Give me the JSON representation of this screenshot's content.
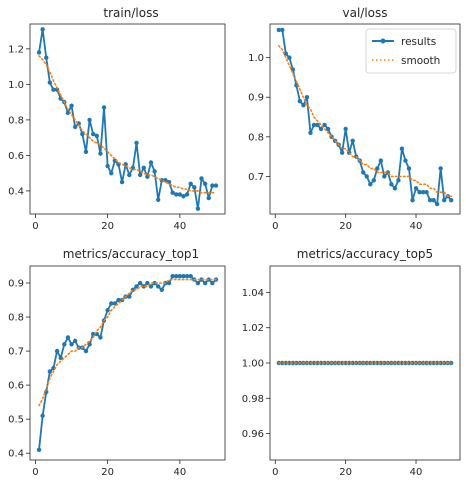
{
  "colors": {
    "results": "#1f77b4",
    "smooth": "#ff7f0e",
    "axis": "#262626",
    "background": "#ffffff"
  },
  "chart_data": [
    {
      "type": "line",
      "title": "train/loss",
      "xlim": [
        -1.5,
        52.5
      ],
      "ylim": [
        0.27,
        1.34
      ],
      "xticks": [
        0,
        20,
        40
      ],
      "yticks": [
        0.4,
        0.6,
        0.8,
        1.0,
        1.2
      ],
      "x": [
        1,
        2,
        3,
        4,
        5,
        6,
        7,
        8,
        9,
        10,
        11,
        12,
        13,
        14,
        15,
        16,
        17,
        18,
        19,
        20,
        21,
        22,
        23,
        24,
        25,
        26,
        27,
        28,
        29,
        30,
        31,
        32,
        33,
        34,
        35,
        36,
        37,
        38,
        39,
        40,
        41,
        42,
        43,
        44,
        45,
        46,
        47,
        48,
        49,
        50
      ],
      "series": [
        {
          "name": "results",
          "style": "line-dot",
          "values": [
            1.18,
            1.31,
            1.15,
            1.01,
            0.97,
            0.97,
            0.92,
            0.9,
            0.84,
            0.88,
            0.76,
            0.78,
            0.72,
            0.62,
            0.8,
            0.72,
            0.71,
            0.61,
            0.87,
            0.54,
            0.5,
            0.57,
            0.55,
            0.45,
            0.55,
            0.49,
            0.53,
            0.67,
            0.49,
            0.53,
            0.48,
            0.56,
            0.51,
            0.35,
            0.46,
            0.46,
            0.45,
            0.39,
            0.38,
            0.38,
            0.37,
            0.38,
            0.44,
            0.42,
            0.3,
            0.47,
            0.44,
            0.36,
            0.43,
            0.43
          ]
        },
        {
          "name": "smooth",
          "style": "dotted",
          "values": [
            1.16,
            1.14,
            1.11,
            1.07,
            1.02,
            0.98,
            0.94,
            0.9,
            0.86,
            0.83,
            0.8,
            0.77,
            0.74,
            0.72,
            0.7,
            0.68,
            0.67,
            0.66,
            0.64,
            0.62,
            0.6,
            0.58,
            0.56,
            0.55,
            0.54,
            0.53,
            0.52,
            0.52,
            0.51,
            0.5,
            0.49,
            0.49,
            0.48,
            0.47,
            0.46,
            0.45,
            0.44,
            0.43,
            0.42,
            0.42,
            0.41,
            0.41,
            0.4,
            0.4,
            0.4,
            0.39,
            0.39,
            0.39,
            0.39,
            0.39
          ]
        }
      ]
    },
    {
      "type": "line",
      "title": "val/loss",
      "xlim": [
        -1.5,
        52.5
      ],
      "ylim": [
        0.605,
        1.085
      ],
      "xticks": [
        0,
        20,
        40
      ],
      "yticks": [
        0.7,
        0.8,
        0.9,
        1.0
      ],
      "legend": {
        "position": "top-right",
        "entries": [
          "results",
          "smooth"
        ]
      },
      "x": [
        1,
        2,
        3,
        4,
        5,
        6,
        7,
        8,
        9,
        10,
        11,
        12,
        13,
        14,
        15,
        16,
        17,
        18,
        19,
        20,
        21,
        22,
        23,
        24,
        25,
        26,
        27,
        28,
        29,
        30,
        31,
        32,
        33,
        34,
        35,
        36,
        37,
        38,
        39,
        40,
        41,
        42,
        43,
        44,
        45,
        46,
        47,
        48,
        49,
        50
      ],
      "series": [
        {
          "name": "results",
          "style": "line-dot",
          "values": [
            1.07,
            1.07,
            1.01,
            1.0,
            0.97,
            0.93,
            0.89,
            0.88,
            0.9,
            0.81,
            0.83,
            0.83,
            0.82,
            0.83,
            0.82,
            0.8,
            0.79,
            0.78,
            0.76,
            0.82,
            0.76,
            0.79,
            0.75,
            0.74,
            0.71,
            0.7,
            0.68,
            0.69,
            0.72,
            0.74,
            0.7,
            0.71,
            0.68,
            0.67,
            0.69,
            0.77,
            0.74,
            0.72,
            0.64,
            0.67,
            0.66,
            0.66,
            0.66,
            0.64,
            0.64,
            0.63,
            0.72,
            0.64,
            0.65,
            0.64
          ]
        },
        {
          "name": "smooth",
          "style": "dotted",
          "values": [
            1.03,
            1.02,
            1.0,
            0.98,
            0.96,
            0.94,
            0.92,
            0.9,
            0.88,
            0.87,
            0.85,
            0.84,
            0.83,
            0.82,
            0.81,
            0.8,
            0.79,
            0.78,
            0.77,
            0.77,
            0.76,
            0.75,
            0.75,
            0.74,
            0.73,
            0.73,
            0.72,
            0.72,
            0.71,
            0.71,
            0.71,
            0.71,
            0.7,
            0.7,
            0.7,
            0.7,
            0.7,
            0.7,
            0.69,
            0.69,
            0.68,
            0.68,
            0.68,
            0.67,
            0.67,
            0.66,
            0.66,
            0.66,
            0.65,
            0.65
          ]
        }
      ]
    },
    {
      "type": "line",
      "title": "metrics/accuracy_top1",
      "xlim": [
        -1.5,
        52.5
      ],
      "ylim": [
        0.38,
        0.95
      ],
      "xticks": [
        0,
        20,
        40
      ],
      "yticks": [
        0.4,
        0.5,
        0.6,
        0.7,
        0.8,
        0.9
      ],
      "x": [
        1,
        2,
        3,
        4,
        5,
        6,
        7,
        8,
        9,
        10,
        11,
        12,
        13,
        14,
        15,
        16,
        17,
        18,
        19,
        20,
        21,
        22,
        23,
        24,
        25,
        26,
        27,
        28,
        29,
        30,
        31,
        32,
        33,
        34,
        35,
        36,
        37,
        38,
        39,
        40,
        41,
        42,
        43,
        44,
        45,
        46,
        47,
        48,
        49,
        50
      ],
      "series": [
        {
          "name": "results",
          "style": "line-dot",
          "values": [
            0.41,
            0.51,
            0.58,
            0.64,
            0.65,
            0.7,
            0.68,
            0.72,
            0.74,
            0.72,
            0.73,
            0.71,
            0.71,
            0.7,
            0.72,
            0.75,
            0.75,
            0.74,
            0.79,
            0.82,
            0.84,
            0.84,
            0.85,
            0.85,
            0.86,
            0.86,
            0.88,
            0.89,
            0.9,
            0.89,
            0.9,
            0.89,
            0.9,
            0.89,
            0.88,
            0.9,
            0.9,
            0.92,
            0.92,
            0.92,
            0.92,
            0.92,
            0.92,
            0.91,
            0.9,
            0.91,
            0.9,
            0.91,
            0.9,
            0.91
          ]
        },
        {
          "name": "smooth",
          "style": "dotted",
          "values": [
            0.54,
            0.56,
            0.59,
            0.62,
            0.64,
            0.66,
            0.67,
            0.68,
            0.69,
            0.7,
            0.7,
            0.71,
            0.71,
            0.72,
            0.73,
            0.74,
            0.76,
            0.77,
            0.79,
            0.8,
            0.82,
            0.83,
            0.84,
            0.85,
            0.86,
            0.87,
            0.88,
            0.88,
            0.89,
            0.89,
            0.89,
            0.9,
            0.9,
            0.9,
            0.9,
            0.9,
            0.91,
            0.91,
            0.91,
            0.91,
            0.91,
            0.91,
            0.91,
            0.91,
            0.91,
            0.91,
            0.91,
            0.91,
            0.91,
            0.91
          ]
        }
      ]
    },
    {
      "type": "line",
      "title": "metrics/accuracy_top5",
      "xlim": [
        -1.5,
        52.5
      ],
      "ylim": [
        0.945,
        1.055
      ],
      "xticks": [
        0,
        20,
        40
      ],
      "yticks": [
        0.96,
        0.98,
        1.0,
        1.02,
        1.04
      ],
      "ytick_format": 2,
      "x": [
        1,
        2,
        3,
        4,
        5,
        6,
        7,
        8,
        9,
        10,
        11,
        12,
        13,
        14,
        15,
        16,
        17,
        18,
        19,
        20,
        21,
        22,
        23,
        24,
        25,
        26,
        27,
        28,
        29,
        30,
        31,
        32,
        33,
        34,
        35,
        36,
        37,
        38,
        39,
        40,
        41,
        42,
        43,
        44,
        45,
        46,
        47,
        48,
        49,
        50
      ],
      "series": [
        {
          "name": "results",
          "style": "line-dot",
          "values": [
            1,
            1,
            1,
            1,
            1,
            1,
            1,
            1,
            1,
            1,
            1,
            1,
            1,
            1,
            1,
            1,
            1,
            1,
            1,
            1,
            1,
            1,
            1,
            1,
            1,
            1,
            1,
            1,
            1,
            1,
            1,
            1,
            1,
            1,
            1,
            1,
            1,
            1,
            1,
            1,
            1,
            1,
            1,
            1,
            1,
            1,
            1,
            1,
            1,
            1
          ]
        },
        {
          "name": "smooth",
          "style": "dotted",
          "values": [
            1,
            1,
            1,
            1,
            1,
            1,
            1,
            1,
            1,
            1,
            1,
            1,
            1,
            1,
            1,
            1,
            1,
            1,
            1,
            1,
            1,
            1,
            1,
            1,
            1,
            1,
            1,
            1,
            1,
            1,
            1,
            1,
            1,
            1,
            1,
            1,
            1,
            1,
            1,
            1,
            1,
            1,
            1,
            1,
            1,
            1,
            1,
            1,
            1,
            1
          ]
        }
      ]
    }
  ]
}
